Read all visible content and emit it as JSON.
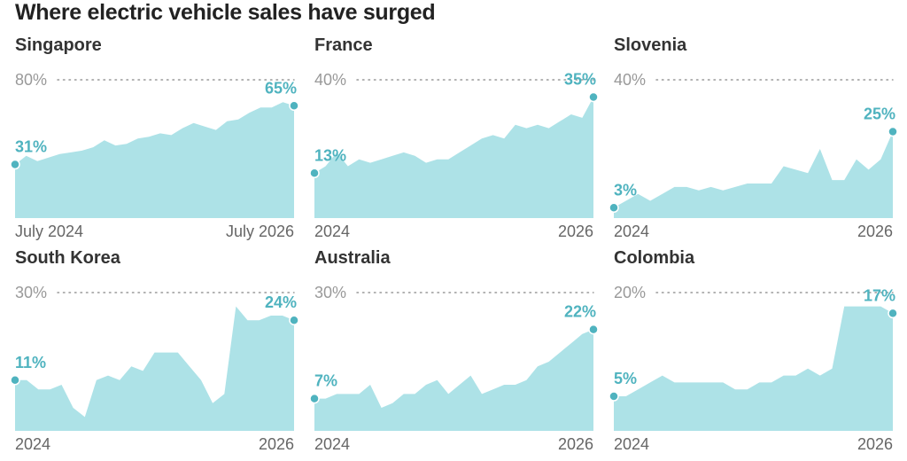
{
  "title": "Where electric vehicle sales have surged",
  "colors": {
    "area": "#ade2e7",
    "accent": "#4fb3bf",
    "grid": "#999999"
  },
  "chart_data": [
    {
      "type": "area",
      "title": "Singapore",
      "ylim": [
        0,
        80
      ],
      "gridline_label": "80%",
      "x_labels": [
        "July 2024",
        "July 2026"
      ],
      "start_label": "31%",
      "end_label": "65%",
      "values": [
        31,
        36,
        33,
        35,
        37,
        38,
        39,
        41,
        45,
        42,
        43,
        46,
        47,
        49,
        48,
        52,
        55,
        53,
        51,
        56,
        57,
        61,
        64,
        64,
        67,
        65
      ]
    },
    {
      "type": "area",
      "title": "France",
      "ylim": [
        0,
        40
      ],
      "gridline_label": "40%",
      "x_labels": [
        "2024",
        "2026"
      ],
      "start_label": "13%",
      "end_label": "35%",
      "values": [
        13,
        15,
        19,
        15,
        17,
        16,
        17,
        18,
        19,
        18,
        16,
        17,
        17,
        19,
        21,
        23,
        24,
        23,
        27,
        26,
        27,
        26,
        28,
        30,
        29,
        35
      ]
    },
    {
      "type": "area",
      "title": "Slovenia",
      "ylim": [
        0,
        40
      ],
      "gridline_label": "40%",
      "x_labels": [
        "2024",
        "2026"
      ],
      "start_label": "3%",
      "end_label": "25%",
      "values": [
        3,
        5,
        7,
        5,
        7,
        9,
        9,
        8,
        9,
        8,
        9,
        10,
        10,
        10,
        15,
        14,
        13,
        20,
        11,
        11,
        17,
        14,
        17,
        25
      ]
    },
    {
      "type": "area",
      "title": "South Korea",
      "ylim": [
        0,
        30
      ],
      "gridline_label": "30%",
      "x_labels": [
        "2024",
        "2026"
      ],
      "start_label": "11%",
      "end_label": "24%",
      "values": [
        11,
        11,
        9,
        9,
        10,
        5,
        3,
        11,
        12,
        11,
        14,
        13,
        17,
        17,
        17,
        14,
        11,
        6,
        8,
        27,
        24,
        24,
        25,
        25,
        24
      ]
    },
    {
      "type": "area",
      "title": "Australia",
      "ylim": [
        0,
        30
      ],
      "gridline_label": "30%",
      "x_labels": [
        "2024",
        "2026"
      ],
      "start_label": "7%",
      "end_label": "22%",
      "values": [
        7,
        7,
        8,
        8,
        8,
        10,
        5,
        6,
        8,
        8,
        10,
        11,
        8,
        10,
        12,
        8,
        9,
        10,
        10,
        11,
        14,
        15,
        17,
        19,
        21,
        22
      ]
    },
    {
      "type": "area",
      "title": "Colombia",
      "ylim": [
        0,
        20
      ],
      "gridline_label": "20%",
      "x_labels": [
        "2024",
        "2026"
      ],
      "start_label": "5%",
      "end_label": "17%",
      "values": [
        5,
        5,
        6,
        7,
        8,
        7,
        7,
        7,
        7,
        7,
        6,
        6,
        7,
        7,
        8,
        8,
        9,
        8,
        9,
        18,
        18,
        18,
        18,
        17
      ]
    }
  ]
}
